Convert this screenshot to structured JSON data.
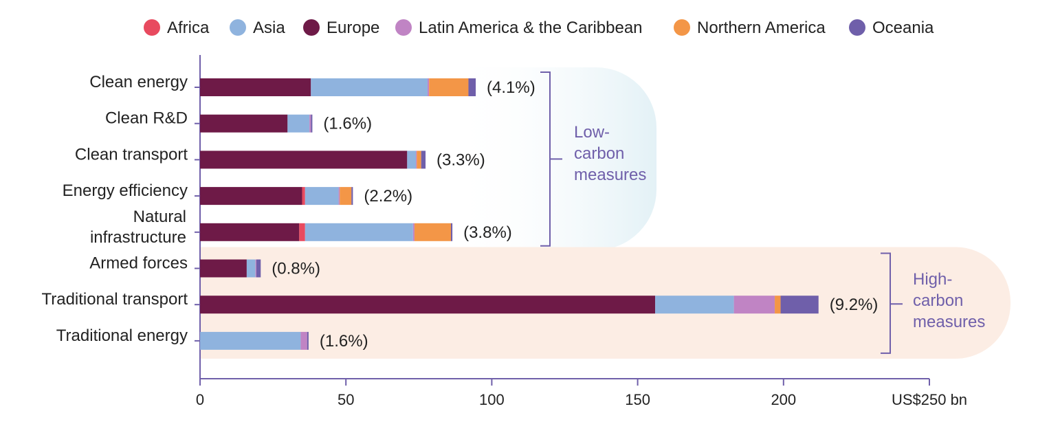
{
  "chart_data": {
    "type": "bar",
    "orientation": "horizontal",
    "stacked": true,
    "categories": [
      "Clean energy",
      "Clean R&D",
      "Clean transport",
      "Energy efficiency",
      "Natural infrastructure",
      "Armed forces",
      "Traditional transport",
      "Traditional energy"
    ],
    "category_lines": [
      [
        "Clean energy"
      ],
      [
        "Clean R&D"
      ],
      [
        "Clean transport"
      ],
      [
        "Energy efficiency"
      ],
      [
        "Natural",
        "infrastructure"
      ],
      [
        "Armed forces"
      ],
      [
        "Traditional transport"
      ],
      [
        "Traditional energy"
      ]
    ],
    "series": [
      {
        "name": "Europe",
        "color": "#6E1A47",
        "values": [
          38,
          30,
          71,
          35,
          34,
          16,
          156,
          0
        ]
      },
      {
        "name": "Africa",
        "color": "#E84A5F",
        "values": [
          0,
          0,
          0,
          1,
          2,
          0,
          0,
          0
        ]
      },
      {
        "name": "Asia",
        "color": "#8FB3DE",
        "values": [
          40,
          7.5,
          3,
          11.5,
          37,
          3,
          27,
          34.5
        ]
      },
      {
        "name": "Latin America & the Caribbean",
        "color": "#C084C4",
        "values": [
          0.5,
          0.5,
          0.3,
          0.4,
          0.5,
          0.3,
          14,
          2.2
        ]
      },
      {
        "name": "Northern America",
        "color": "#F39647",
        "values": [
          13.5,
          0,
          1.5,
          4,
          12.5,
          0,
          2,
          0
        ]
      },
      {
        "name": "Oceania",
        "color": "#6F5FAA",
        "values": [
          2.5,
          0.5,
          1.5,
          0.5,
          0.5,
          1.5,
          13,
          0.5
        ]
      }
    ],
    "legend_order": [
      "Africa",
      "Asia",
      "Europe",
      "Latin America & the Caribbean",
      "Northern America",
      "Oceania"
    ],
    "bar_labels": [
      "(4.1%)",
      "(1.6%)",
      "(3.3%)",
      "(2.2%)",
      "(3.8%)",
      "(0.8%)",
      "(9.2%)",
      "(1.6%)"
    ],
    "x_ticks": [
      0,
      50,
      100,
      150,
      200
    ],
    "x_tick_labels": [
      "0",
      "50",
      "100",
      "150",
      "200"
    ],
    "x_end_label": "US$250 bn",
    "xlim": [
      0,
      250
    ],
    "grid": false,
    "legend_position": "top",
    "groups": [
      {
        "lines": [
          "Low-",
          "carbon",
          "measures"
        ],
        "first": 0,
        "last": 4,
        "bg": "#E3F1F6",
        "text_color": "#6F5FAA",
        "bracket_color": "#6F5FAA"
      },
      {
        "lines": [
          "High-",
          "carbon",
          "measures"
        ],
        "first": 5,
        "last": 7,
        "bg": "#FCEDE4",
        "text_color": "#6F5FAA",
        "bracket_color": "#6F5FAA"
      }
    ],
    "axis_color": "#6F5FAA"
  }
}
